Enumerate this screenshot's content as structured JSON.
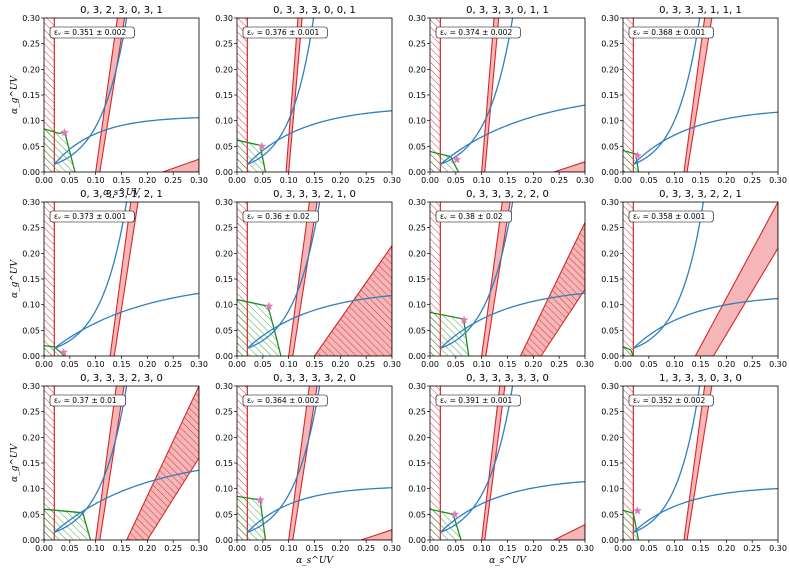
{
  "figure": {
    "xlabel": "α_s^UV",
    "ylabel": "α_g^UV"
  },
  "colors": {
    "red_line": "#d62728",
    "red_fill": "#f4b6b6",
    "blue_line": "#2f7fbf",
    "green_line": "#1a8f1a",
    "star": "#e377c2",
    "frame": "#000000"
  },
  "chart_data": [
    {
      "type": "line",
      "title": "0, 3, 2, 3, 0, 3, 1",
      "annotation": "εᵥ = 0.351 ± 0.002",
      "xlim": [
        0,
        0.3
      ],
      "ylim": [
        0,
        0.3
      ],
      "xticks": [
        "0.00",
        "0.05",
        "0.10",
        "0.15",
        "0.20",
        "0.25",
        "0.30"
      ],
      "yticks": [
        "0.00",
        "0.05",
        "0.10",
        "0.15",
        "0.20",
        "0.25",
        "0.30"
      ],
      "grid": false,
      "red_band": {
        "x_left": [
          [
            0,
            0.1
          ],
          [
            0.3,
            0.142
          ]
        ],
        "x_right": [
          [
            0,
            0.108
          ],
          [
            0.3,
            0.156
          ]
        ]
      },
      "red_corner": {
        "kind": "filled",
        "pts": [
          [
            0.23,
            0
          ],
          [
            0.3,
            0.025
          ],
          [
            0.3,
            0
          ]
        ]
      },
      "blue_steep": {
        "a": 0.05,
        "b": 0.0185
      },
      "blue_shallow": {
        "ymax": 0.108,
        "k": 12
      },
      "green": [
        [
          0,
          0.084
        ],
        [
          0.03,
          0.075
        ],
        [
          0.04,
          0.078
        ],
        [
          0.06,
          0.0
        ]
      ],
      "star": [
        0.04,
        0.077
      ],
      "xlabel_show": true,
      "ylabel_show": true
    },
    {
      "type": "line",
      "title": "0, 3, 3, 3, 0, 0, 1",
      "annotation": "εᵥ = 0.376 ± 0.001",
      "xlim": [
        0,
        0.3
      ],
      "ylim": [
        0,
        0.3
      ],
      "xticks": [
        "0.00",
        "0.05",
        "0.10",
        "0.15",
        "0.20",
        "0.25",
        "0.30"
      ],
      "yticks": [
        "0.00",
        "0.05",
        "0.10",
        "0.15",
        "0.20",
        "0.25",
        "0.30"
      ],
      "grid": false,
      "red_band": {
        "x_left": [
          [
            0,
            0.095
          ],
          [
            0.3,
            0.118
          ]
        ],
        "x_right": [
          [
            0,
            0.1
          ],
          [
            0.3,
            0.126
          ]
        ]
      },
      "red_corner": null,
      "blue_steep": {
        "a": 0.045,
        "b": 0.0175
      },
      "blue_shallow": {
        "ymax": 0.128,
        "k": 9
      },
      "green": [
        [
          0,
          0.062
        ],
        [
          0.045,
          0.052
        ],
        [
          0.055,
          0.0
        ]
      ],
      "star": [
        0.048,
        0.05
      ],
      "xlabel_show": false,
      "ylabel_show": false
    },
    {
      "type": "line",
      "title": "0, 3, 3, 3, 0, 1, 1",
      "annotation": "εᵥ = 0.374 ± 0.002",
      "xlim": [
        0,
        0.3
      ],
      "ylim": [
        0,
        0.3
      ],
      "xticks": [
        "0.00",
        "0.05",
        "0.10",
        "0.15",
        "0.20",
        "0.25",
        "0.30"
      ],
      "yticks": [
        "0.00",
        "0.05",
        "0.10",
        "0.15",
        "0.20",
        "0.25",
        "0.30"
      ],
      "grid": false,
      "red_band": {
        "x_left": [
          [
            0,
            0.1
          ],
          [
            0.3,
            0.124
          ]
        ],
        "x_right": [
          [
            0,
            0.106
          ],
          [
            0.3,
            0.133
          ]
        ]
      },
      "red_corner": {
        "kind": "filled",
        "pts": [
          [
            0.24,
            0
          ],
          [
            0.3,
            0.02
          ],
          [
            0.3,
            0
          ]
        ]
      },
      "blue_steep": {
        "a": 0.05,
        "b": 0.0185
      },
      "blue_shallow": {
        "ymax": 0.158,
        "k": 6
      },
      "green": [
        [
          0,
          0.04
        ],
        [
          0.04,
          0.03
        ],
        [
          0.055,
          0.0
        ]
      ],
      "star": [
        0.052,
        0.024
      ],
      "xlabel_show": false,
      "ylabel_show": false
    },
    {
      "type": "line",
      "title": "0, 3, 3, 3, 1, 1, 1",
      "annotation": "εᵥ = 0.368 ± 0.001",
      "xlim": [
        0,
        0.3
      ],
      "ylim": [
        0,
        0.3
      ],
      "xticks": [
        "0.00",
        "0.05",
        "0.10",
        "0.15",
        "0.20",
        "0.25",
        "0.30"
      ],
      "yticks": [
        "0.00",
        "0.05",
        "0.10",
        "0.15",
        "0.20",
        "0.25",
        "0.30"
      ],
      "grid": false,
      "red_band": {
        "x_left": [
          [
            0,
            0.118
          ],
          [
            0.3,
            0.158
          ]
        ],
        "x_right": [
          [
            0,
            0.124
          ],
          [
            0.3,
            0.172
          ]
        ]
      },
      "red_corner": null,
      "blue_steep": {
        "a": 0.045,
        "b": 0.0175
      },
      "blue_shallow": {
        "ymax": 0.125,
        "k": 9
      },
      "green": [
        [
          0,
          0.042
        ],
        [
          0.025,
          0.035
        ],
        [
          0.03,
          0.0
        ]
      ],
      "star": [
        0.028,
        0.032
      ],
      "xlabel_show": false,
      "ylabel_show": false
    },
    {
      "type": "line",
      "title": "0, 3, 3, 3, 1, 2, 1",
      "annotation": "εᵥ = 0.373 ± 0.001",
      "xlim": [
        0,
        0.3
      ],
      "ylim": [
        0,
        0.3
      ],
      "xticks": [
        "0.00",
        "0.05",
        "0.10",
        "0.15",
        "0.20",
        "0.25",
        "0.30"
      ],
      "yticks": [
        "0.00",
        "0.05",
        "0.10",
        "0.15",
        "0.20",
        "0.25",
        "0.30"
      ],
      "grid": false,
      "red_band": {
        "x_left": [
          [
            0,
            0.128
          ],
          [
            0.3,
            0.168
          ]
        ],
        "x_right": [
          [
            0,
            0.136
          ],
          [
            0.3,
            0.182
          ]
        ]
      },
      "red_corner": null,
      "blue_steep": {
        "a": 0.05,
        "b": 0.0185
      },
      "blue_shallow": {
        "ymax": 0.148,
        "k": 6
      },
      "green": [
        [
          0,
          0.02
        ],
        [
          0.02,
          0.018
        ],
        [
          0.04,
          0.0
        ]
      ],
      "star": [
        0.038,
        0.007
      ],
      "xlabel_show": false,
      "ylabel_show": true
    },
    {
      "type": "line",
      "title": "0, 3, 3, 3, 2, 1, 0",
      "annotation": "εᵥ = 0.36 ± 0.02",
      "xlim": [
        0,
        0.3
      ],
      "ylim": [
        0,
        0.3
      ],
      "xticks": [
        "0.00",
        "0.05",
        "0.10",
        "0.15",
        "0.20",
        "0.25",
        "0.30"
      ],
      "yticks": [
        "0.00",
        "0.05",
        "0.10",
        "0.15",
        "0.20",
        "0.25",
        "0.30"
      ],
      "grid": false,
      "red_band": {
        "x_left": [
          [
            0,
            0.1
          ],
          [
            0.3,
            0.14
          ]
        ],
        "x_right": [
          [
            0,
            0.108
          ],
          [
            0.3,
            0.155
          ]
        ]
      },
      "red_corner": {
        "kind": "hatched",
        "pts": [
          [
            0.15,
            0
          ],
          [
            0.3,
            0.215
          ],
          [
            0.3,
            0
          ],
          [
            0.15,
            0
          ]
        ],
        "top": [
          [
            0.155,
            0
          ],
          [
            0.3,
            0.215
          ]
        ],
        "bottom": [
          [
            0.3,
            0.08
          ],
          [
            0.2,
            0
          ]
        ]
      },
      "blue_steep": {
        "a": 0.05,
        "b": 0.0185
      },
      "blue_shallow": {
        "ymax": 0.13,
        "k": 8
      },
      "green": [
        [
          0,
          0.11
        ],
        [
          0.06,
          0.097
        ],
        [
          0.075,
          0.04
        ],
        [
          0.085,
          0.0
        ]
      ],
      "star": [
        0.062,
        0.097
      ],
      "xlabel_show": false,
      "ylabel_show": false
    },
    {
      "type": "line",
      "title": "0, 3, 3, 3, 2, 2, 0",
      "annotation": "εᵥ = 0.38 ± 0.02",
      "xlim": [
        0,
        0.3
      ],
      "ylim": [
        0,
        0.3
      ],
      "xticks": [
        "0.00",
        "0.05",
        "0.10",
        "0.15",
        "0.20",
        "0.25",
        "0.30"
      ],
      "yticks": [
        "0.00",
        "0.05",
        "0.10",
        "0.15",
        "0.20",
        "0.25",
        "0.30"
      ],
      "grid": false,
      "red_band": {
        "x_left": [
          [
            0,
            0.1
          ],
          [
            0.3,
            0.14
          ]
        ],
        "x_right": [
          [
            0,
            0.108
          ],
          [
            0.3,
            0.155
          ]
        ]
      },
      "red_corner": {
        "kind": "hatched",
        "top": [
          [
            0.175,
            0
          ],
          [
            0.3,
            0.26
          ]
        ],
        "bottom": [
          [
            0.3,
            0.13
          ],
          [
            0.215,
            0
          ]
        ]
      },
      "blue_steep": {
        "a": 0.05,
        "b": 0.0185
      },
      "blue_shallow": {
        "ymax": 0.135,
        "k": 8
      },
      "green": [
        [
          0,
          0.085
        ],
        [
          0.065,
          0.072
        ],
        [
          0.075,
          0.0
        ]
      ],
      "star": [
        0.066,
        0.07
      ],
      "xlabel_show": false,
      "ylabel_show": false
    },
    {
      "type": "line",
      "title": "0, 3, 3, 3, 2, 2, 1",
      "annotation": "εᵥ = 0.358 ± 0.001",
      "xlim": [
        0,
        0.3
      ],
      "ylim": [
        0,
        0.3
      ],
      "xticks": [
        "0.00",
        "0.05",
        "0.10",
        "0.15",
        "0.20",
        "0.25",
        "0.30"
      ],
      "yticks": [
        "0.00",
        "0.05",
        "0.10",
        "0.15",
        "0.20",
        "0.25",
        "0.30"
      ],
      "grid": false,
      "red_band": null,
      "red_corner": {
        "kind": "filled",
        "top": [
          [
            0.14,
            0
          ],
          [
            0.3,
            0.3
          ]
        ],
        "bottom": [
          [
            0.3,
            0.21
          ],
          [
            0.175,
            0
          ]
        ]
      },
      "blue_steep": {
        "a": 0.048,
        "b": 0.018
      },
      "blue_shallow": {
        "ymax": 0.12,
        "k": 9
      },
      "green": [
        [
          0,
          0.018
        ],
        [
          0.015,
          0.012
        ],
        [
          0.02,
          0.0
        ]
      ],
      "star": null,
      "xlabel_show": false,
      "ylabel_show": false
    },
    {
      "type": "line",
      "title": "0, 3, 3, 3, 2, 3, 0",
      "annotation": "εᵥ = 0.37 ± 0.01",
      "xlim": [
        0,
        0.3
      ],
      "ylim": [
        0,
        0.3
      ],
      "xticks": [
        "0.00",
        "0.05",
        "0.10",
        "0.15",
        "0.20",
        "0.25",
        "0.30"
      ],
      "yticks": [
        "0.00",
        "0.05",
        "0.10",
        "0.15",
        "0.20",
        "0.25",
        "0.30"
      ],
      "grid": false,
      "red_band": {
        "x_left": [
          [
            0,
            0.1
          ],
          [
            0.3,
            0.14
          ]
        ],
        "x_right": [
          [
            0,
            0.108
          ],
          [
            0.3,
            0.155
          ]
        ]
      },
      "red_corner": {
        "kind": "hatched",
        "top": [
          [
            0.16,
            0
          ],
          [
            0.3,
            0.3
          ]
        ],
        "bottom": [
          [
            0.3,
            0.16
          ],
          [
            0.2,
            0
          ]
        ]
      },
      "blue_steep": {
        "a": 0.05,
        "b": 0.0185
      },
      "blue_shallow": {
        "ymax": 0.165,
        "k": 6
      },
      "green": [
        [
          0,
          0.06
        ],
        [
          0.075,
          0.053
        ],
        [
          0.09,
          0.0
        ]
      ],
      "star": null,
      "xlabel_show": false,
      "ylabel_show": true
    },
    {
      "type": "line",
      "title": "0, 3, 3, 3, 3, 2, 0",
      "annotation": "εᵥ = 0.364 ± 0.002",
      "xlim": [
        0,
        0.3
      ],
      "ylim": [
        0,
        0.3
      ],
      "xticks": [
        "0.00",
        "0.05",
        "0.10",
        "0.15",
        "0.20",
        "0.25",
        "0.30"
      ],
      "yticks": [
        "0.00",
        "0.05",
        "0.10",
        "0.15",
        "0.20",
        "0.25",
        "0.30"
      ],
      "grid": false,
      "red_band": {
        "x_left": [
          [
            0,
            0.1
          ],
          [
            0.3,
            0.14
          ]
        ],
        "x_right": [
          [
            0,
            0.108
          ],
          [
            0.3,
            0.155
          ]
        ]
      },
      "red_corner": {
        "kind": "filled",
        "pts": [
          [
            0.24,
            0
          ],
          [
            0.3,
            0.02
          ],
          [
            0.3,
            0
          ]
        ]
      },
      "blue_steep": {
        "a": 0.05,
        "b": 0.0185
      },
      "blue_shallow": {
        "ymax": 0.105,
        "k": 11
      },
      "green": [
        [
          0,
          0.085
        ],
        [
          0.045,
          0.078
        ],
        [
          0.055,
          0.0
        ]
      ],
      "star": [
        0.045,
        0.078
      ],
      "xlabel_show": true,
      "ylabel_show": false
    },
    {
      "type": "line",
      "title": "0, 3, 3, 3, 3, 3, 0",
      "annotation": "εᵥ = 0.391 ± 0.001",
      "xlim": [
        0,
        0.3
      ],
      "ylim": [
        0,
        0.3
      ],
      "xticks": [
        "0.00",
        "0.05",
        "0.10",
        "0.15",
        "0.20",
        "0.25",
        "0.30"
      ],
      "yticks": [
        "0.00",
        "0.05",
        "0.10",
        "0.15",
        "0.20",
        "0.25",
        "0.30"
      ],
      "grid": false,
      "red_band": {
        "x_left": [
          [
            0,
            0.1
          ],
          [
            0.3,
            0.135
          ]
        ],
        "x_right": [
          [
            0,
            0.106
          ],
          [
            0.3,
            0.145
          ]
        ]
      },
      "red_corner": {
        "kind": "filled",
        "pts": [
          [
            0.24,
            0
          ],
          [
            0.3,
            0.03
          ],
          [
            0.3,
            0
          ]
        ]
      },
      "blue_steep": {
        "a": 0.05,
        "b": 0.0185
      },
      "blue_shallow": {
        "ymax": 0.122,
        "k": 9
      },
      "green": [
        [
          0,
          0.06
        ],
        [
          0.045,
          0.05
        ],
        [
          0.06,
          0.0
        ]
      ],
      "star": [
        0.048,
        0.05
      ],
      "xlabel_show": true,
      "ylabel_show": false
    },
    {
      "type": "line",
      "title": "1, 3, 3, 3, 0, 3, 0",
      "annotation": "εᵥ = 0.352 ± 0.002",
      "xlim": [
        0,
        0.3
      ],
      "ylim": [
        0,
        0.3
      ],
      "xticks": [
        "0.00",
        "0.05",
        "0.10",
        "0.15",
        "0.20",
        "0.25",
        "0.30"
      ],
      "yticks": [
        "0.00",
        "0.05",
        "0.10",
        "0.15",
        "0.20",
        "0.25",
        "0.30"
      ],
      "grid": false,
      "red_band": {
        "x_left": [
          [
            0,
            0.118
          ],
          [
            0.3,
            0.158
          ]
        ],
        "x_right": [
          [
            0,
            0.124
          ],
          [
            0.3,
            0.172
          ]
        ]
      },
      "red_corner": null,
      "blue_steep": {
        "a": 0.045,
        "b": 0.0175
      },
      "blue_shallow": {
        "ymax": 0.105,
        "k": 10
      },
      "green": [
        [
          0,
          0.058
        ],
        [
          0.02,
          0.052
        ],
        [
          0.03,
          0.0
        ]
      ],
      "star": [
        0.028,
        0.057
      ],
      "xlabel_show": false,
      "ylabel_show": false
    }
  ]
}
